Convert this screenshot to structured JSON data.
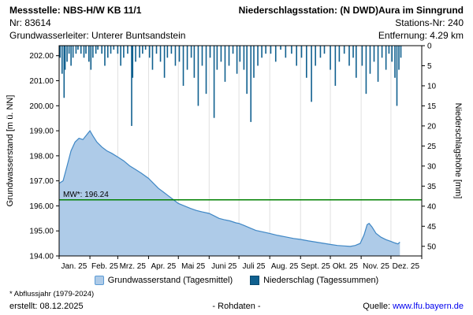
{
  "header": {
    "left1": "Messstelle: NBS-H/W KB 11/1",
    "left2": "Nr: 83614",
    "left3": "Grundwasserleiter:  Unterer Buntsandstein",
    "right1": "Niederschlagsstation: (N DWD)Aura im Sinngrund",
    "right2": "Stations-Nr: 240",
    "right3": "Entfernung: 4.29 km"
  },
  "footer": {
    "footnote": "* Abflussjahr (1979-2024)",
    "created": "erstellt:  08.12.2025",
    "center": "- Rohdaten -",
    "source_label": "Quelle:",
    "source_link": "www.lfu.bayern.de"
  },
  "chart_data": {
    "type": "line+bar",
    "left_axis": {
      "label": "Grundwasserstand [m ü. NN]",
      "min": 194,
      "max": 202.4,
      "ticks": [
        194,
        195,
        196,
        197,
        198,
        199,
        200,
        201,
        202
      ]
    },
    "right_axis": {
      "label": "Niederschlagshöhe [mm]",
      "min": 0,
      "max": 52.4,
      "ticks": [
        0,
        5,
        10,
        15,
        20,
        25,
        30,
        35,
        40,
        45,
        50
      ],
      "inverted": true
    },
    "x_axis": {
      "months": [
        "Jan. 25",
        "Feb. 25",
        "Mrz. 25",
        "Apr. 25",
        "Mai 25",
        "Juni 25",
        "Juli 25",
        "Aug. 25",
        "Sept. 25",
        "Okt. 25",
        "Nov. 25",
        "Dez. 25"
      ],
      "month_start_days": [
        0,
        31,
        59,
        90,
        120,
        151,
        181,
        212,
        243,
        273,
        304,
        334
      ],
      "days_total": 365
    },
    "mw_line": {
      "value": 196.24,
      "label": "MW*: 196.24",
      "color": "#008000"
    },
    "groundwater": {
      "name": "Grundwasserstand (Tagesmittel)",
      "fill": "#aecbe8",
      "stroke": "#3f87c5",
      "points": [
        [
          0,
          196.9
        ],
        [
          4,
          197.0
        ],
        [
          8,
          197.6
        ],
        [
          12,
          198.2
        ],
        [
          16,
          198.55
        ],
        [
          20,
          198.7
        ],
        [
          24,
          198.65
        ],
        [
          28,
          198.85
        ],
        [
          31,
          199.0
        ],
        [
          34,
          198.8
        ],
        [
          38,
          198.55
        ],
        [
          43,
          198.35
        ],
        [
          48,
          198.2
        ],
        [
          53,
          198.1
        ],
        [
          59,
          197.95
        ],
        [
          65,
          197.8
        ],
        [
          71,
          197.6
        ],
        [
          77,
          197.45
        ],
        [
          83,
          197.3
        ],
        [
          90,
          197.1
        ],
        [
          95,
          196.9
        ],
        [
          100,
          196.7
        ],
        [
          105,
          196.55
        ],
        [
          110,
          196.4
        ],
        [
          115,
          196.25
        ],
        [
          120,
          196.1
        ],
        [
          126,
          196.0
        ],
        [
          132,
          195.9
        ],
        [
          138,
          195.82
        ],
        [
          144,
          195.76
        ],
        [
          151,
          195.7
        ],
        [
          156,
          195.6
        ],
        [
          161,
          195.5
        ],
        [
          166,
          195.45
        ],
        [
          172,
          195.4
        ],
        [
          178,
          195.32
        ],
        [
          181,
          195.3
        ],
        [
          186,
          195.22
        ],
        [
          192,
          195.12
        ],
        [
          198,
          195.02
        ],
        [
          204,
          194.97
        ],
        [
          212,
          194.9
        ],
        [
          220,
          194.82
        ],
        [
          228,
          194.76
        ],
        [
          236,
          194.7
        ],
        [
          243,
          194.66
        ],
        [
          251,
          194.6
        ],
        [
          259,
          194.55
        ],
        [
          267,
          194.5
        ],
        [
          273,
          194.46
        ],
        [
          280,
          194.42
        ],
        [
          287,
          194.4
        ],
        [
          293,
          194.38
        ],
        [
          298,
          194.42
        ],
        [
          303,
          194.5
        ],
        [
          307,
          194.85
        ],
        [
          310,
          195.25
        ],
        [
          312,
          195.3
        ],
        [
          315,
          195.15
        ],
        [
          319,
          194.9
        ],
        [
          324,
          194.75
        ],
        [
          329,
          194.65
        ],
        [
          334,
          194.58
        ],
        [
          338,
          194.52
        ],
        [
          341,
          194.48
        ],
        [
          343,
          194.55
        ]
      ]
    },
    "precipitation": {
      "name": "Niederschlag (Tagessummen)",
      "color": "#10608f",
      "bars": [
        [
          1,
          3
        ],
        [
          3,
          7
        ],
        [
          5,
          13
        ],
        [
          6,
          6
        ],
        [
          8,
          4
        ],
        [
          10,
          2
        ],
        [
          12,
          5
        ],
        [
          14,
          3
        ],
        [
          17,
          2
        ],
        [
          19,
          1
        ],
        [
          22,
          2
        ],
        [
          25,
          3
        ],
        [
          27,
          2
        ],
        [
          30,
          4
        ],
        [
          32,
          6
        ],
        [
          34,
          3
        ],
        [
          37,
          2
        ],
        [
          39,
          1
        ],
        [
          43,
          2
        ],
        [
          46,
          5
        ],
        [
          49,
          3
        ],
        [
          52,
          2
        ],
        [
          55,
          1
        ],
        [
          59,
          2
        ],
        [
          62,
          5
        ],
        [
          65,
          3
        ],
        [
          69,
          2
        ],
        [
          73,
          20
        ],
        [
          74,
          8
        ],
        [
          77,
          4
        ],
        [
          81,
          3
        ],
        [
          84,
          2
        ],
        [
          87,
          1
        ],
        [
          91,
          3
        ],
        [
          94,
          6
        ],
        [
          98,
          2
        ],
        [
          102,
          4
        ],
        [
          106,
          8
        ],
        [
          109,
          3
        ],
        [
          113,
          2
        ],
        [
          117,
          5
        ],
        [
          121,
          4
        ],
        [
          125,
          10
        ],
        [
          129,
          6
        ],
        [
          133,
          3
        ],
        [
          136,
          8
        ],
        [
          140,
          15
        ],
        [
          144,
          5
        ],
        [
          148,
          12
        ],
        [
          152,
          3
        ],
        [
          156,
          18
        ],
        [
          159,
          6
        ],
        [
          163,
          4
        ],
        [
          167,
          9
        ],
        [
          171,
          5
        ],
        [
          175,
          2
        ],
        [
          179,
          7
        ],
        [
          182,
          4
        ],
        [
          186,
          6
        ],
        [
          189,
          12
        ],
        [
          193,
          19
        ],
        [
          196,
          8
        ],
        [
          200,
          5
        ],
        [
          204,
          3
        ],
        [
          208,
          2
        ],
        [
          213,
          2
        ],
        [
          218,
          4
        ],
        [
          223,
          1
        ],
        [
          228,
          3
        ],
        [
          234,
          2
        ],
        [
          239,
          5
        ],
        [
          244,
          3
        ],
        [
          249,
          8
        ],
        [
          254,
          14
        ],
        [
          258,
          5
        ],
        [
          263,
          3
        ],
        [
          267,
          2
        ],
        [
          273,
          6
        ],
        [
          278,
          10
        ],
        [
          282,
          4
        ],
        [
          287,
          2
        ],
        [
          292,
          5
        ],
        [
          296,
          3
        ],
        [
          299,
          8
        ],
        [
          305,
          5
        ],
        [
          309,
          12
        ],
        [
          313,
          7
        ],
        [
          317,
          4
        ],
        [
          321,
          9
        ],
        [
          325,
          3
        ],
        [
          329,
          6
        ],
        [
          332,
          2
        ],
        [
          335,
          4
        ],
        [
          338,
          8
        ],
        [
          340,
          15
        ],
        [
          342,
          6
        ],
        [
          344,
          3
        ]
      ]
    },
    "colors": {
      "grid": "#e0e0e0",
      "axis": "#000000",
      "link": "#0000ee"
    }
  }
}
